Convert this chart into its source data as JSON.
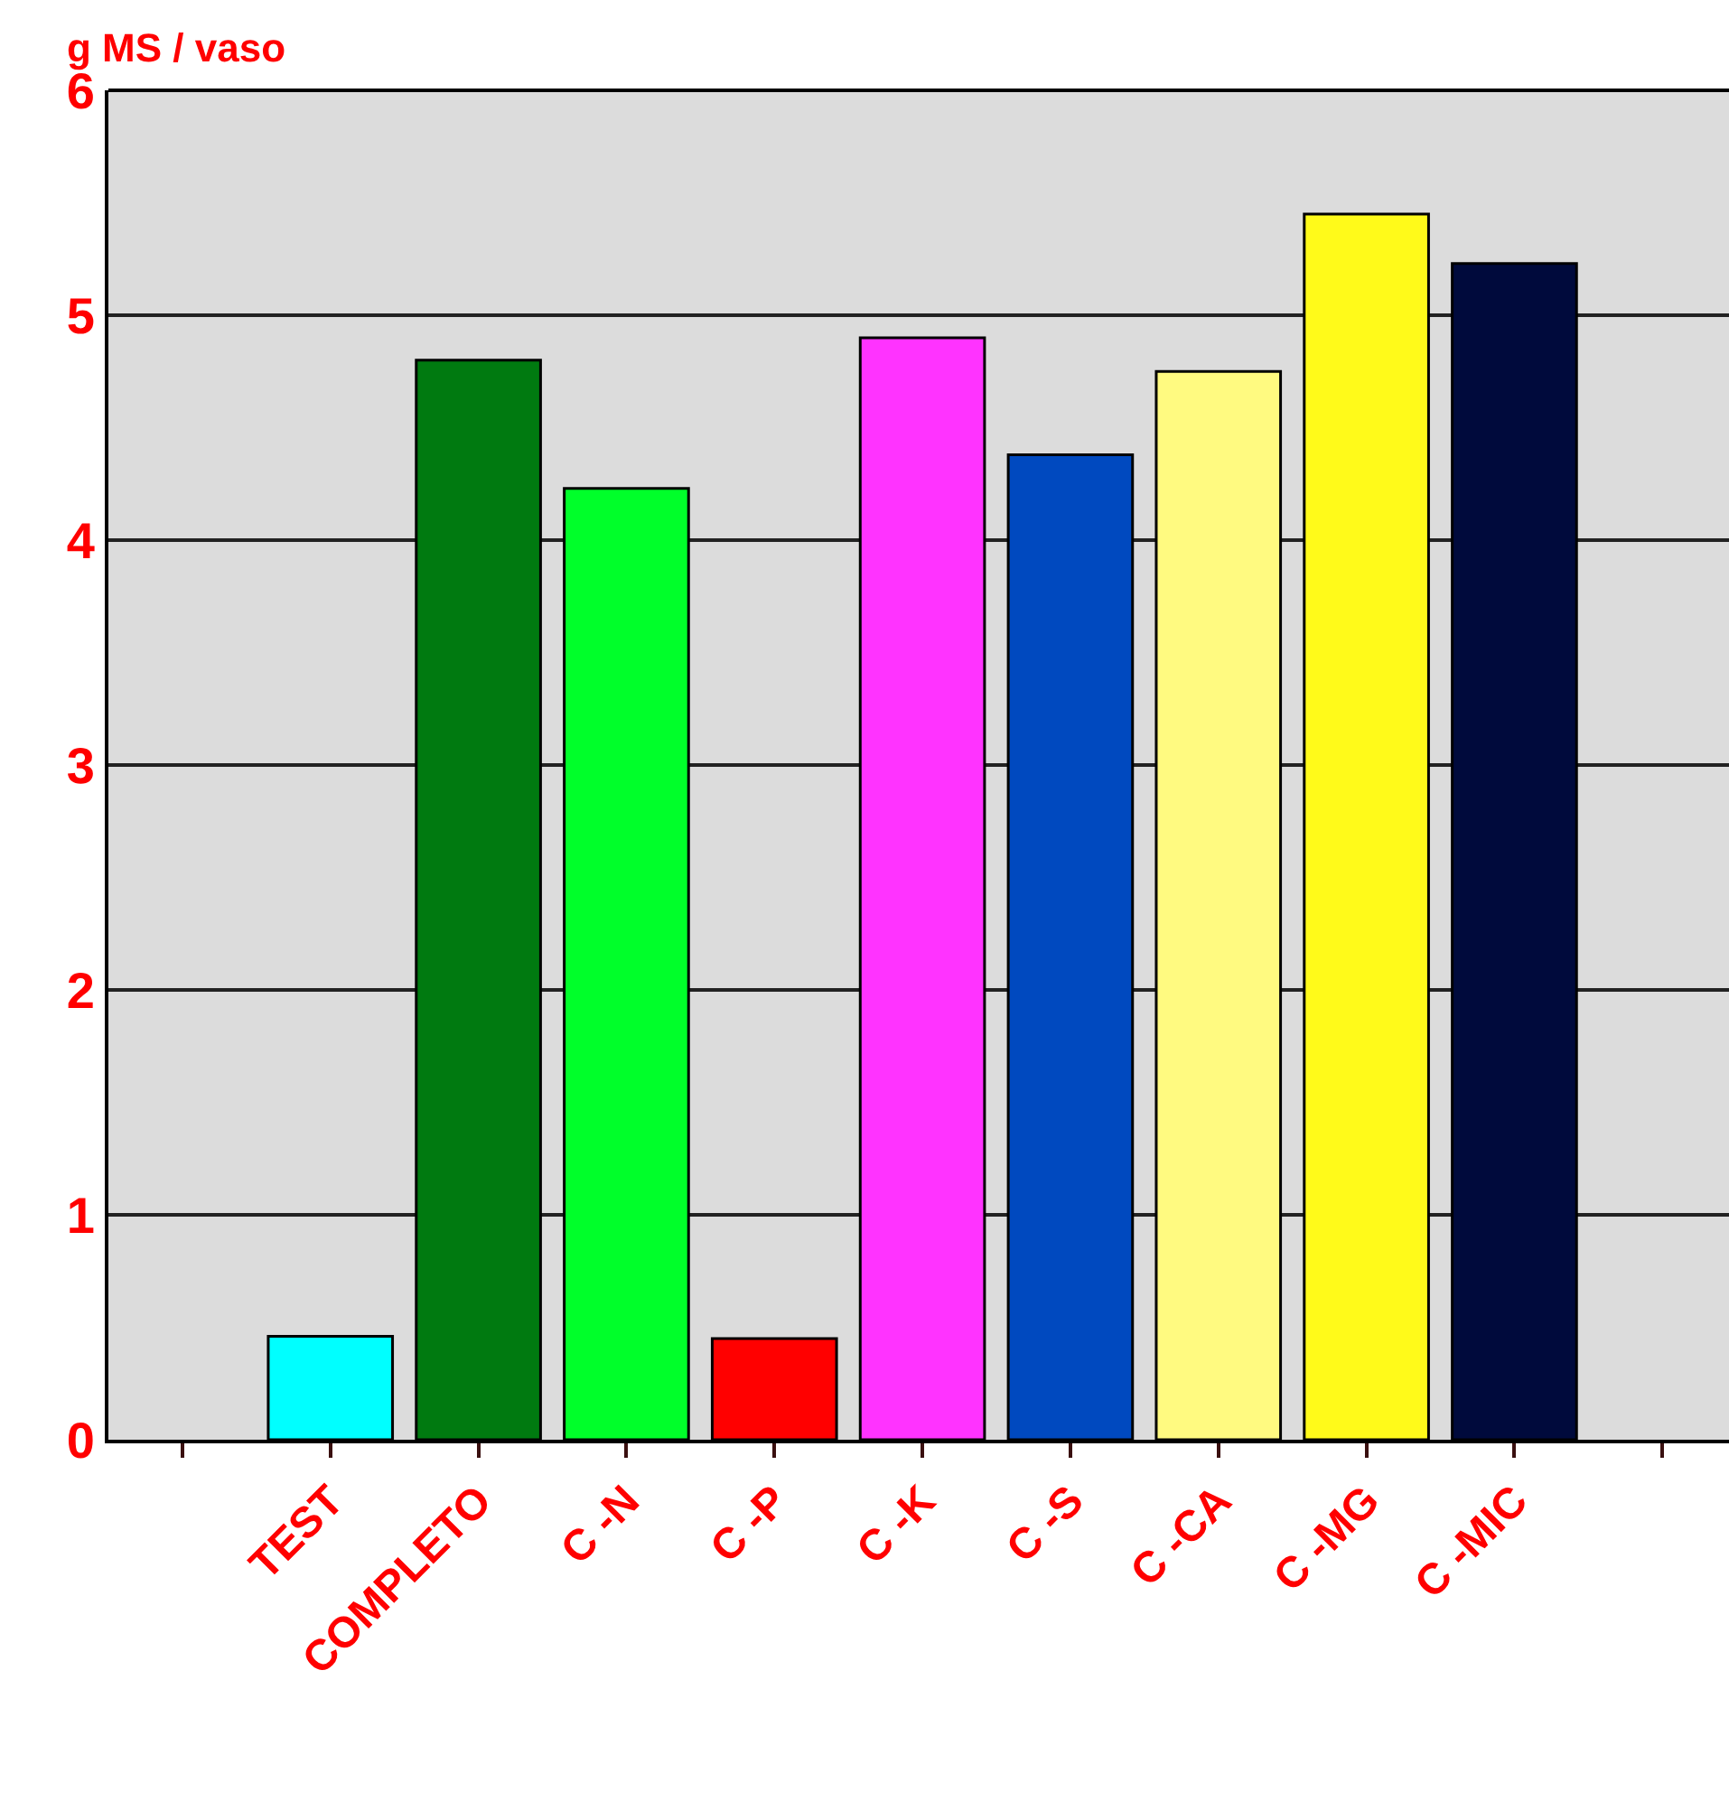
{
  "chart_data": {
    "type": "bar",
    "ylabel": "g MS / vaso",
    "categories": [
      "TEST",
      "COMPLETO",
      "C -N",
      "C -P",
      "C -K",
      "C -S",
      "C -CA",
      "C -MG",
      "C -MIC"
    ],
    "values": [
      0.46,
      4.8,
      4.23,
      0.45,
      4.9,
      4.38,
      4.75,
      5.45,
      5.23
    ],
    "colors": [
      "#00ffff",
      "#007a10",
      "#00ff2a",
      "#ff0000",
      "#ff33ff",
      "#0049bf",
      "#fffa80",
      "#fffa1a",
      "#000a3c"
    ],
    "ylim": [
      0,
      6
    ],
    "yticks": [
      0,
      1,
      2,
      3,
      4,
      5,
      6
    ],
    "grid": "y"
  }
}
